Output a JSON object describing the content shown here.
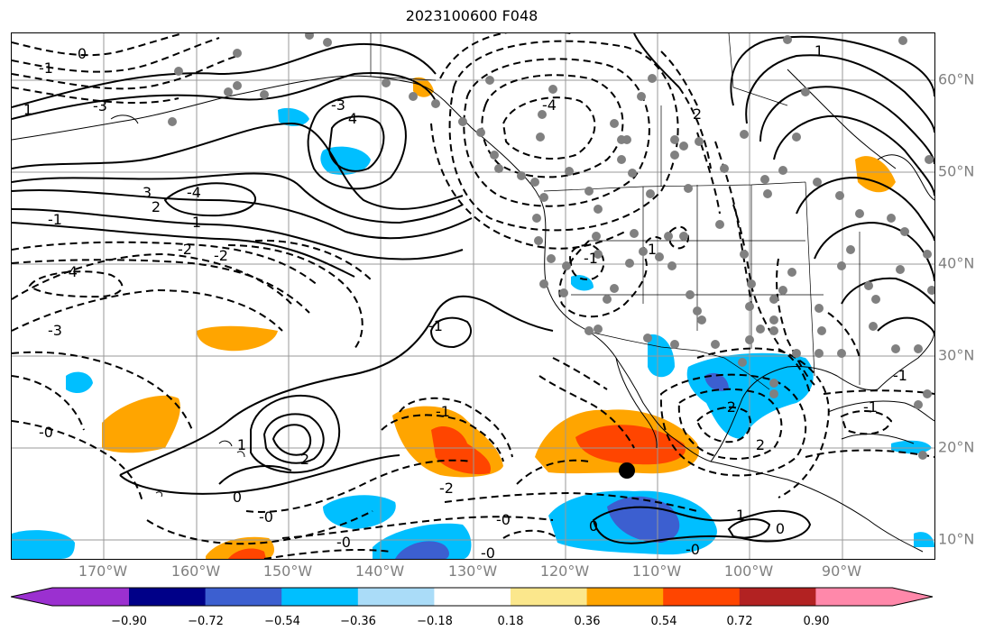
{
  "title": "2023100600 F048",
  "map_extent": {
    "lon": [
      -180,
      -80
    ],
    "lat": [
      8,
      65
    ]
  },
  "lon_ticks": [
    {
      "lon": -170,
      "label": "170°W"
    },
    {
      "lon": -160,
      "label": "160°W"
    },
    {
      "lon": -150,
      "label": "150°W"
    },
    {
      "lon": -140,
      "label": "140°W"
    },
    {
      "lon": -130,
      "label": "130°W"
    },
    {
      "lon": -120,
      "label": "120°W"
    },
    {
      "lon": -110,
      "label": "110°W"
    },
    {
      "lon": -100,
      "label": "100°W"
    },
    {
      "lon": -90,
      "label": "90°W"
    }
  ],
  "lat_ticks": [
    {
      "lat": 60,
      "label": "60°N"
    },
    {
      "lat": 50,
      "label": "50°N"
    },
    {
      "lat": 40,
      "label": "40°N"
    },
    {
      "lat": 30,
      "label": "30°N"
    },
    {
      "lat": 20,
      "label": "20°N"
    },
    {
      "lat": 10,
      "label": "10°N"
    }
  ],
  "colorbar": {
    "colors": [
      "#9b30d0",
      "#000088",
      "#3c5fd0",
      "#00bfff",
      "#aadcf8",
      "#ffffff",
      "#fbe78c",
      "#ffa500",
      "#ff4500",
      "#b22222",
      "#ff88aa"
    ],
    "tick_labels": [
      "−0.90",
      "−0.72",
      "−0.54",
      "−0.36",
      "−0.18",
      "0.18",
      "0.36",
      "0.54",
      "0.72",
      "0.90"
    ]
  },
  "contour_labels": [
    "-1",
    "0",
    "1",
    "-3",
    "4",
    "-3",
    "-4",
    "3",
    "-4",
    "2",
    "1",
    "-1",
    "-2",
    "-2",
    "-4",
    "-3",
    "-1",
    "-0",
    "1",
    "-1",
    "2",
    "-0",
    "0",
    "-2",
    "-0",
    "-0",
    "-0",
    "-1",
    "2",
    "-2",
    "-1",
    "-1",
    "1",
    "2",
    "0",
    "1",
    "1",
    "0",
    "-0"
  ],
  "marker": {
    "lon": -113.5,
    "lat": 17.5,
    "color": "#000000"
  },
  "colors": {
    "positive_contour": "#000000",
    "negative_contour": "#000000",
    "station_dots": "#808080",
    "grid": "#999999",
    "tick_labels": "#808080"
  }
}
